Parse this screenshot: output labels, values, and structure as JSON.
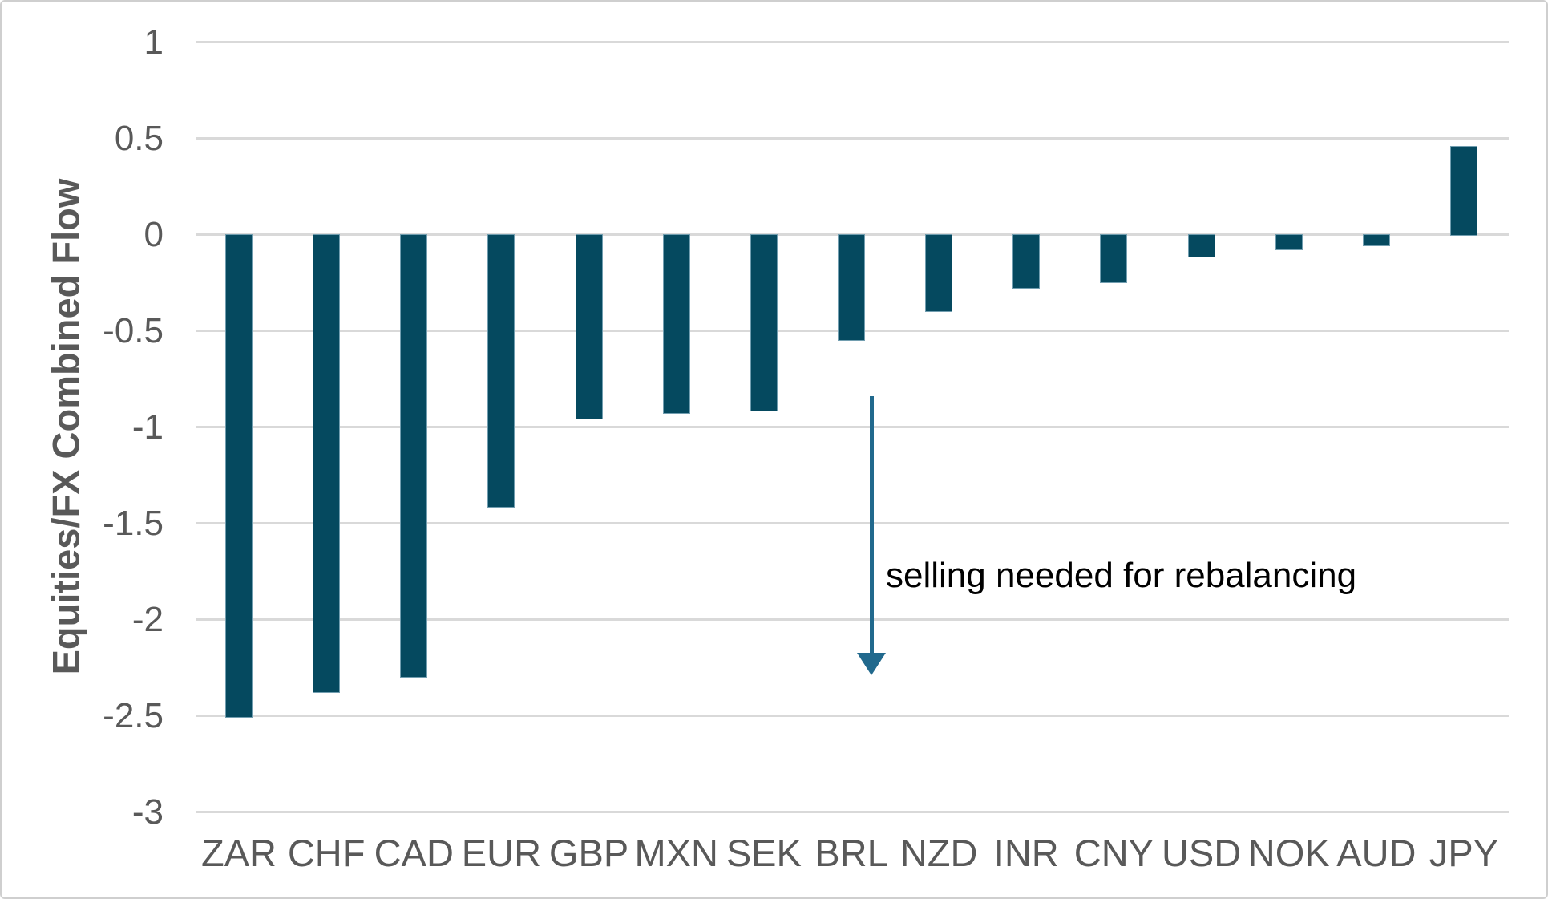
{
  "frame": {
    "background": "#ffffff",
    "border_color": "#cfcfcf"
  },
  "chart_data": {
    "type": "bar",
    "title": "",
    "xlabel": "",
    "ylabel": "Equities/FX Combined Flow",
    "categories": [
      "ZAR",
      "CHF",
      "CAD",
      "EUR",
      "GBP",
      "MXN",
      "SEK",
      "BRL",
      "NZD",
      "INR",
      "CNY",
      "USD",
      "NOK",
      "AUD",
      "JPY"
    ],
    "values": [
      -2.51,
      -2.38,
      -2.3,
      -1.42,
      -0.96,
      -0.93,
      -0.92,
      -0.55,
      -0.4,
      -0.28,
      -0.25,
      -0.12,
      -0.08,
      -0.06,
      0.46
    ],
    "ylim": [
      -3,
      1
    ],
    "yticks": [
      1,
      0.5,
      0,
      -0.5,
      -1,
      -1.5,
      -2,
      -2.5,
      -3
    ],
    "ytick_labels": [
      "1",
      "0.5",
      "0",
      "-0.5",
      "-1",
      "-1.5",
      "-2",
      "-2.5",
      "-3"
    ],
    "grid": "horizontal",
    "legend_position": "none",
    "colors": {
      "bar": "#05495f",
      "gridline": "#d9d9d9",
      "tick_label": "#595959",
      "axis_title": "#595959",
      "annotation_text": "#000000",
      "arrow": "#21698d"
    },
    "annotation": {
      "text": "selling needed for rebalancing",
      "arrow_span_values": [
        -0.84,
        -2.29
      ],
      "text_anchor_value": -1.77
    }
  }
}
